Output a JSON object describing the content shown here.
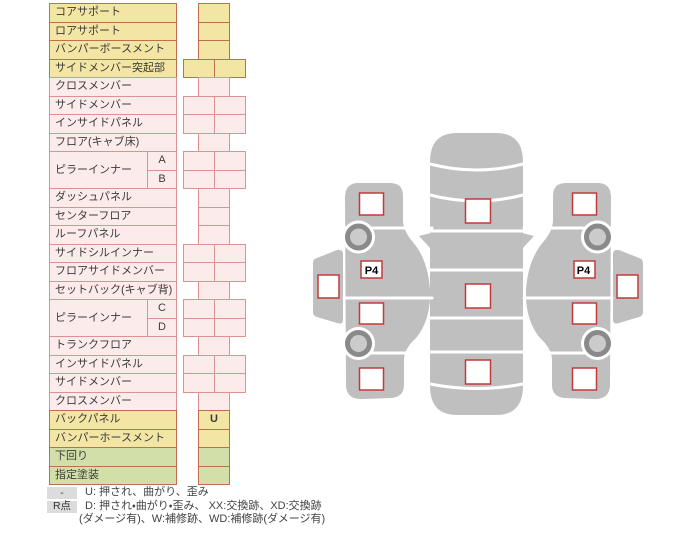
{
  "colors": {
    "row_yellow": "#f3e5a3",
    "row_pink": "#fcebeb",
    "row_green": "#d2dfa8",
    "border_warm": "#bf6f4d",
    "border_pink": "#da9292",
    "mark_red": "#c23b3b",
    "car_gray": "#bfbfbf",
    "wheel_gray": "#8a8a8a",
    "badge_gray": "#dcdcdc"
  },
  "table": {
    "rows": [
      {
        "label": "コアサポート",
        "color": "yellow",
        "cells": "single"
      },
      {
        "label": "ロアサポート",
        "color": "yellow",
        "cells": "single"
      },
      {
        "label": "バンパーボースメント",
        "color": "yellow",
        "cells": "single"
      },
      {
        "label": "サイドメンバー突起部",
        "color": "yellow",
        "cells": "double"
      },
      {
        "label": "クロスメンバー",
        "color": "pink",
        "cells": "single"
      },
      {
        "label": "サイドメンバー",
        "color": "pink",
        "cells": "double"
      },
      {
        "label": "インサイドパネル",
        "color": "pink",
        "cells": "double"
      },
      {
        "label": "フロア(キャブ床)",
        "color": "pink",
        "cells": "single"
      },
      {
        "label": "ピラーインナー",
        "sub": [
          "A",
          "B"
        ],
        "color": "pink",
        "cells": "double"
      },
      {
        "label": "ダッシュパネル",
        "color": "pink",
        "cells": "single"
      },
      {
        "label": "センターフロア",
        "color": "pink",
        "cells": "single"
      },
      {
        "label": "ルーフパネル",
        "color": "pink",
        "cells": "single"
      },
      {
        "label": "サイドシルインナー",
        "color": "pink",
        "cells": "double"
      },
      {
        "label": "フロアサイドメンバー",
        "color": "pink",
        "cells": "double"
      },
      {
        "label": "セットバック(キャブ背)",
        "color": "pink",
        "cells": "single"
      },
      {
        "label": "ピラーインナー",
        "sub": [
          "C",
          "D"
        ],
        "color": "pink",
        "cells": "double"
      },
      {
        "label": "トランクフロア",
        "color": "pink",
        "cells": "single"
      },
      {
        "label": "インサイドパネル",
        "color": "pink",
        "cells": "double"
      },
      {
        "label": "サイドメンバー",
        "color": "pink",
        "cells": "double"
      },
      {
        "label": "クロスメンバー",
        "color": "pink",
        "cells": "single"
      },
      {
        "label": "バックパネル",
        "color": "yellow",
        "cells": "single",
        "mark": "U"
      },
      {
        "label": "バンパーホースメント",
        "color": "yellow",
        "cells": "single"
      },
      {
        "label": "下回り",
        "color": "green",
        "cells": "single"
      },
      {
        "label": "指定塗装",
        "color": "green",
        "cells": "single"
      }
    ]
  },
  "legend": {
    "badge1": "-",
    "line1": "U: 押され、曲がり、歪み",
    "badge2": "R点",
    "line2": "D: 押され・曲がり・歪み、 XX:交換跡、XD:交換跡",
    "line3": "(ダメージ有)、W:補修跡、WD:補修跡(ダメージ有)"
  },
  "diagram": {
    "p4_left": "P4",
    "p4_right": "P4"
  }
}
